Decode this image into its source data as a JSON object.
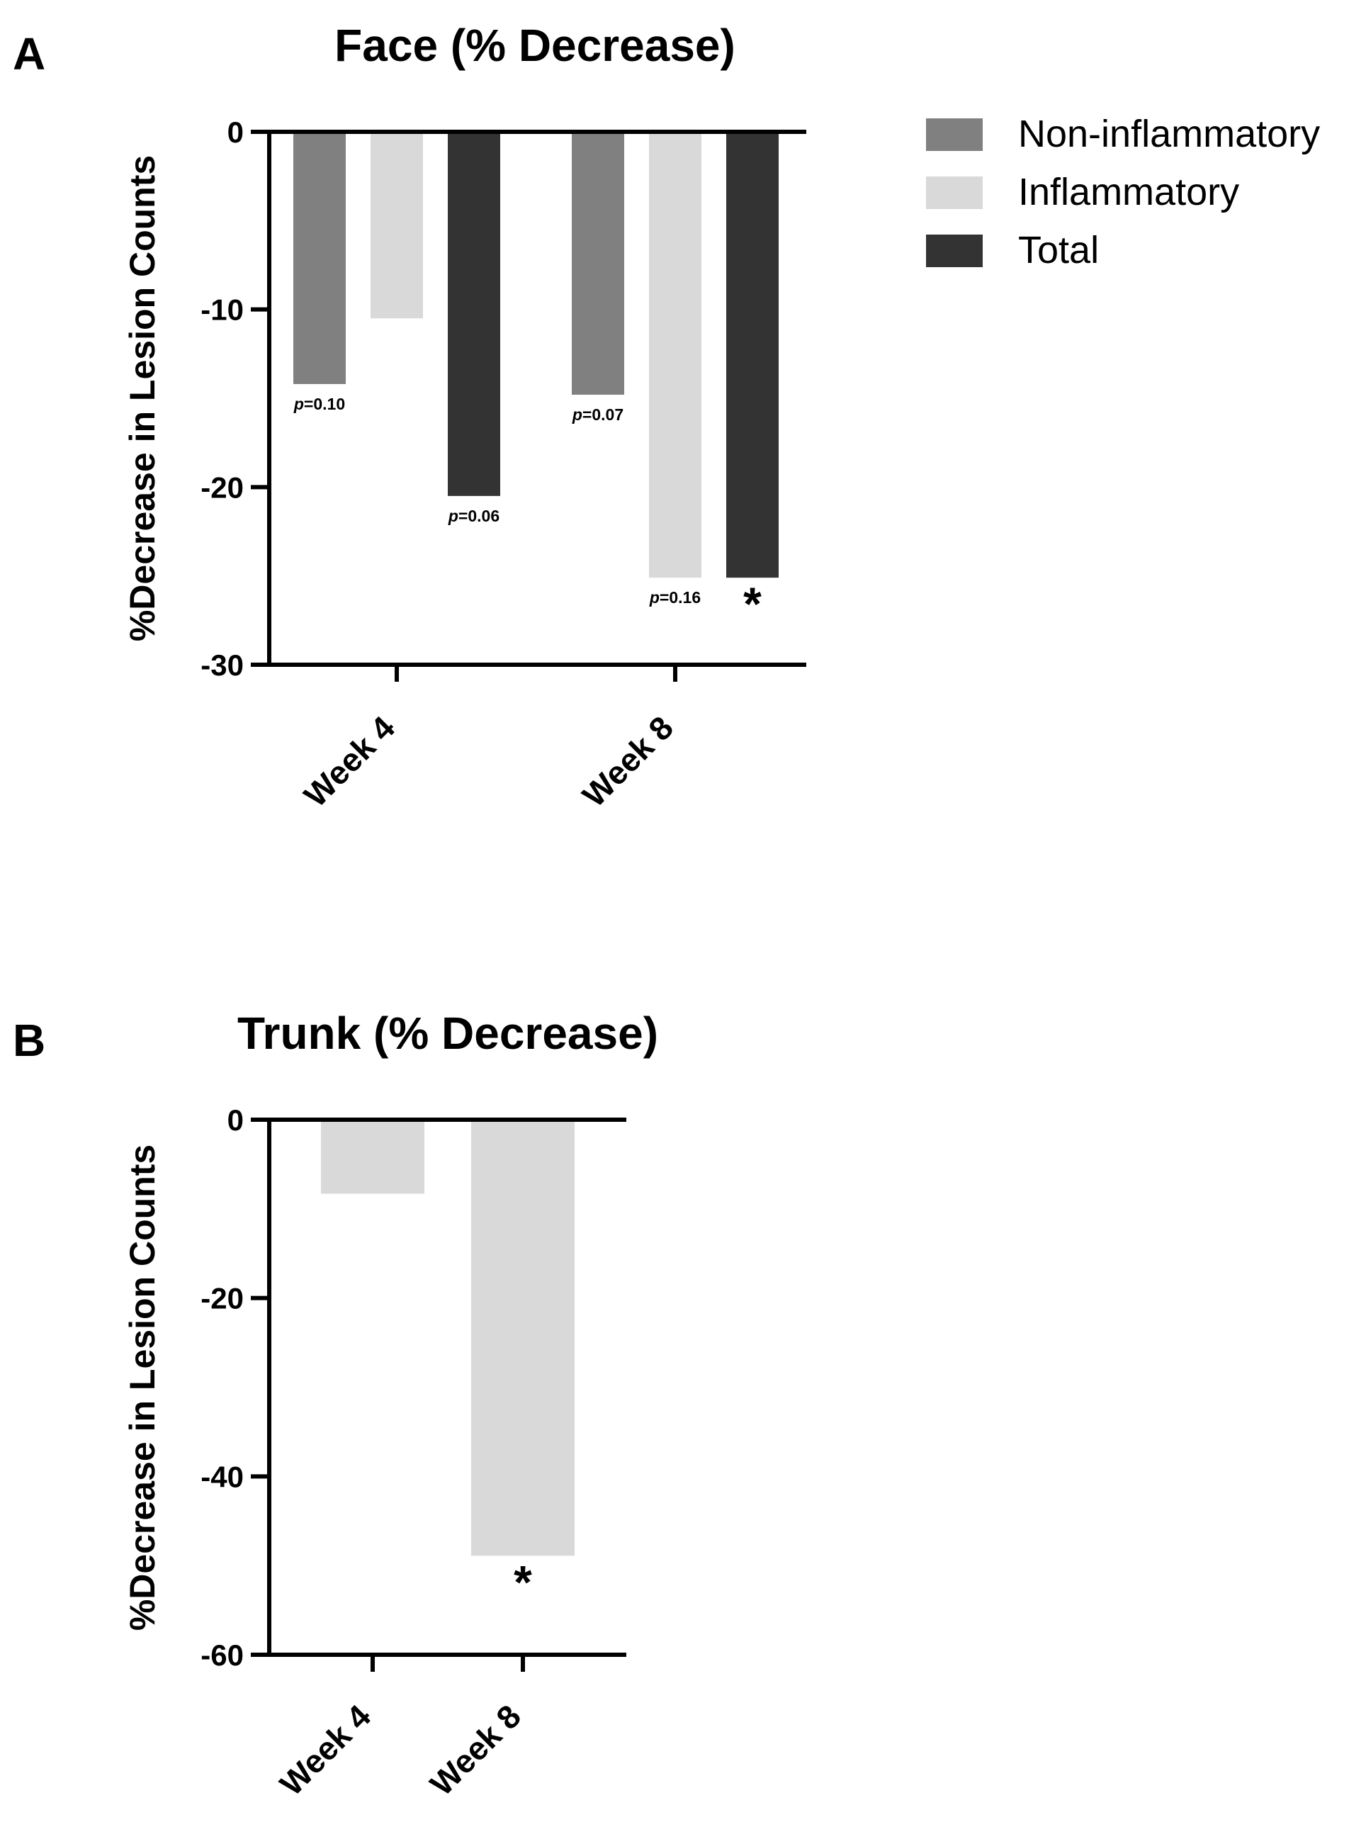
{
  "chart_data": [
    {
      "panel": "A",
      "type": "bar",
      "title": "Face (% Decrease)",
      "ylabel": "%Decrease in Lesion Counts",
      "xlabel": "",
      "ylim": [
        -30,
        0
      ],
      "yticks": [
        0,
        -10,
        -20,
        -30
      ],
      "categories": [
        "Week 4",
        "Week 8"
      ],
      "legend_position": "top-right",
      "series": [
        {
          "name": "Non-inflammatory",
          "color": "#808080",
          "values": [
            -14.2,
            -14.8
          ],
          "annotations": [
            {
              "prefix": "p",
              "text": "=0.10"
            },
            {
              "prefix": "p",
              "text": "=0.07"
            }
          ]
        },
        {
          "name": "Inflammatory",
          "color": "#d9d9d9",
          "values": [
            -10.5,
            -25.1
          ],
          "annotations": [
            null,
            {
              "prefix": "p",
              "text": "=0.16"
            }
          ]
        },
        {
          "name": "Total",
          "color": "#333333",
          "values": [
            -20.5,
            -25.1
          ],
          "annotations": [
            {
              "prefix": "p",
              "text": "=0.06"
            },
            {
              "prefix": "",
              "text": "*"
            }
          ]
        }
      ]
    },
    {
      "panel": "B",
      "type": "bar",
      "title": "Trunk (% Decrease)",
      "ylabel": "%Decrease in Lesion Counts",
      "xlabel": "",
      "ylim": [
        -60,
        0
      ],
      "yticks": [
        0,
        -20,
        -40,
        -60
      ],
      "categories": [
        "Week 4",
        "Week 8"
      ],
      "series": [
        {
          "name": "Inflammatory",
          "color": "#d9d9d9",
          "values": [
            -8.3,
            -48.9
          ],
          "annotations": [
            null,
            {
              "prefix": "",
              "text": "*"
            }
          ]
        }
      ]
    }
  ]
}
